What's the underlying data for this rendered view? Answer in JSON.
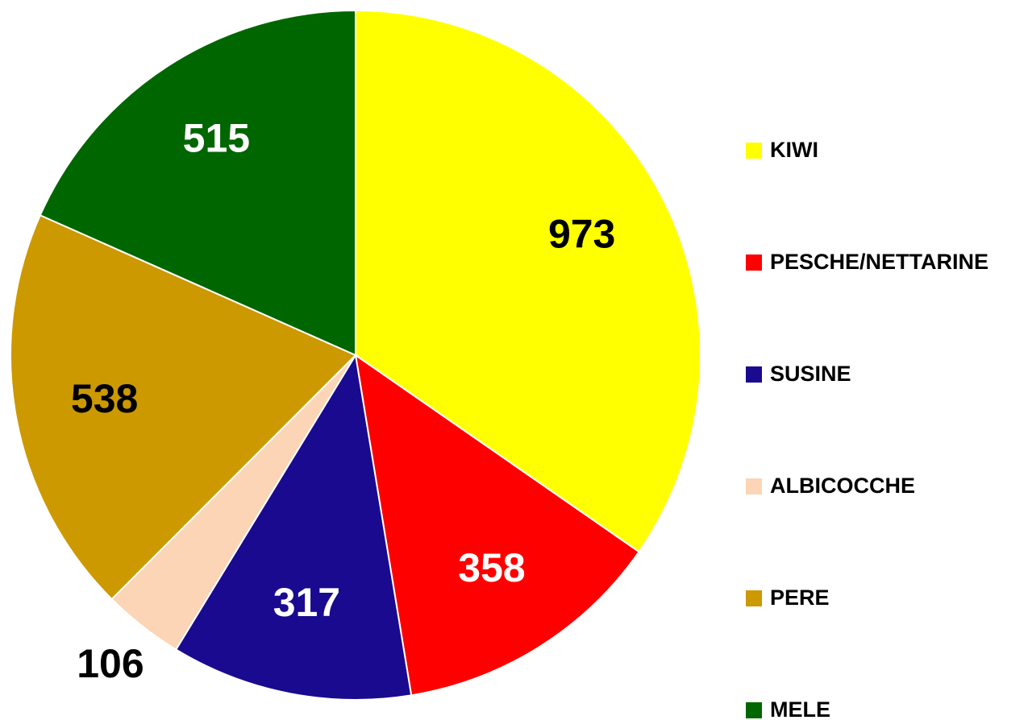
{
  "chart_data": {
    "type": "pie",
    "categories": [
      "KIWI",
      "PESCHE/NETTARINE",
      "SUSINE",
      "ALBICOCCHE",
      "PERE",
      "MELE"
    ],
    "values": [
      973,
      358,
      317,
      106,
      538,
      515
    ],
    "colors": [
      "#ffff00",
      "#ff0000",
      "#1a0a8f",
      "#fbd5b5",
      "#cc9900",
      "#006600"
    ],
    "legend": "right"
  }
}
